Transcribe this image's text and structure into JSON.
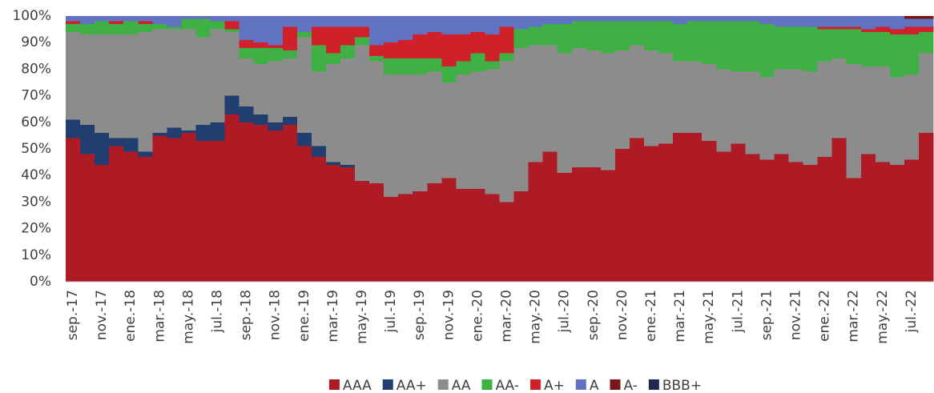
{
  "chart_data": {
    "type": "stacked_area_step",
    "categories": [
      "sep.-17",
      null,
      "nov.-17",
      null,
      "ene.-18",
      null,
      "mar.-18",
      null,
      "may.-18",
      null,
      "jul.-18",
      null,
      "sep.-18",
      null,
      "nov.-18",
      null,
      "ene.-19",
      null,
      "mar.-19",
      null,
      "may.-19",
      null,
      "jul.-19",
      null,
      "sep.-19",
      null,
      "nov.-19",
      null,
      "ene.-20",
      null,
      "mar.-20",
      null,
      "may.-20",
      null,
      "jul.-20",
      null,
      "sep.-20",
      null,
      "nov.-20",
      null,
      "ene.-21",
      null,
      "mar.-21",
      null,
      "may.-21",
      null,
      "jul.-21",
      null,
      "sep.-21",
      null,
      "nov.-21",
      null,
      "ene.-22",
      null,
      "mar.-22",
      null,
      "may.-22",
      null,
      "jul.-22",
      null
    ],
    "series": [
      {
        "name": "AAA",
        "color": "#ae1b24",
        "values": [
          54,
          48,
          44,
          51,
          49,
          47,
          55,
          54,
          56,
          53,
          53,
          63,
          60,
          59,
          57,
          59,
          51,
          47,
          44,
          43,
          38,
          37,
          32,
          33,
          34,
          37,
          39,
          35,
          35,
          33,
          30,
          34,
          45,
          49,
          41,
          43,
          43,
          42,
          50,
          54,
          51,
          52,
          56,
          56,
          53,
          49,
          52,
          48,
          46,
          48,
          45,
          44,
          47,
          54,
          39,
          48,
          45,
          44,
          46,
          56
        ]
      },
      {
        "name": "AA+",
        "color": "#203f70",
        "values": [
          7,
          11,
          12,
          3,
          5,
          2,
          1,
          4,
          1,
          6,
          7,
          7,
          6,
          4,
          3,
          3,
          5,
          4,
          1,
          1,
          0,
          0,
          0,
          0,
          0,
          0,
          0,
          0,
          0,
          0,
          0,
          0,
          0,
          0,
          0,
          0,
          0,
          0,
          0,
          0,
          0,
          0,
          0,
          0,
          0,
          0,
          0,
          0,
          0,
          0,
          0,
          0,
          0,
          0,
          0,
          0,
          0,
          0,
          0,
          0
        ]
      },
      {
        "name": "AA",
        "color": "#8c8c8c",
        "values": [
          33,
          34,
          37,
          39,
          39,
          45,
          39,
          37,
          38,
          33,
          35,
          24,
          18,
          19,
          23,
          22,
          36,
          28,
          37,
          40,
          51,
          46,
          46,
          45,
          44,
          42,
          36,
          43,
          44,
          47,
          53,
          54,
          44,
          40,
          45,
          45,
          44,
          44,
          37,
          35,
          36,
          34,
          27,
          27,
          29,
          31,
          27,
          31,
          31,
          32,
          35,
          35,
          36,
          30,
          43,
          33,
          36,
          33,
          32,
          30
        ]
      },
      {
        "name": "AA-",
        "color": "#3fb044",
        "values": [
          3,
          4,
          5,
          4,
          5,
          3,
          2,
          1,
          4,
          7,
          3,
          1,
          4,
          6,
          5,
          3,
          2,
          10,
          4,
          5,
          3,
          2,
          6,
          6,
          6,
          5,
          6,
          5,
          7,
          3,
          3,
          7,
          7,
          8,
          11,
          10,
          11,
          12,
          11,
          9,
          11,
          12,
          14,
          15,
          16,
          18,
          19,
          19,
          20,
          16,
          16,
          17,
          12,
          11,
          13,
          13,
          13,
          16,
          15,
          8
        ]
      },
      {
        "name": "A+",
        "color": "#d0202a",
        "values": [
          1,
          0,
          0,
          1,
          0,
          1,
          0,
          0,
          0,
          0,
          0,
          3,
          3,
          2,
          1,
          9,
          0,
          7,
          10,
          7,
          4,
          4,
          6,
          7,
          9,
          10,
          12,
          10,
          8,
          10,
          10,
          0,
          0,
          0,
          0,
          0,
          0,
          0,
          0,
          0,
          0,
          0,
          0,
          0,
          0,
          0,
          0,
          0,
          0,
          0,
          0,
          0,
          1,
          1,
          1,
          1,
          2,
          2,
          3,
          2
        ]
      },
      {
        "name": "A",
        "color": "#6272c2",
        "values": [
          2,
          3,
          2,
          2,
          2,
          2,
          3,
          4,
          1,
          1,
          2,
          2,
          9,
          10,
          11,
          4,
          6,
          4,
          4,
          4,
          4,
          11,
          10,
          9,
          7,
          6,
          7,
          7,
          6,
          7,
          4,
          5,
          4,
          3,
          3,
          2,
          2,
          2,
          2,
          2,
          2,
          2,
          3,
          2,
          2,
          2,
          2,
          2,
          3,
          4,
          4,
          4,
          4,
          4,
          4,
          5,
          4,
          5,
          3,
          3
        ]
      },
      {
        "name": "A-",
        "color": "#7a1518",
        "values": [
          0,
          0,
          0,
          0,
          0,
          0,
          0,
          0,
          0,
          0,
          0,
          0,
          0,
          0,
          0,
          0,
          0,
          0,
          0,
          0,
          0,
          0,
          0,
          0,
          0,
          0,
          0,
          0,
          0,
          0,
          0,
          0,
          0,
          0,
          0,
          0,
          0,
          0,
          0,
          0,
          0,
          0,
          0,
          0,
          0,
          0,
          0,
          0,
          0,
          0,
          0,
          0,
          0,
          0,
          0,
          0,
          0,
          0,
          1,
          1
        ]
      },
      {
        "name": "BBB+",
        "color": "#1b2a4e",
        "values": [
          0,
          0,
          0,
          0,
          0,
          0,
          0,
          0,
          0,
          0,
          0,
          0,
          0,
          0,
          0,
          0,
          0,
          0,
          0,
          0,
          0,
          0,
          0,
          0,
          0,
          0,
          0,
          0,
          0,
          0,
          0,
          0,
          0,
          0,
          0,
          0,
          0,
          0,
          0,
          0,
          0,
          0,
          0,
          0,
          0,
          0,
          0,
          0,
          0,
          0,
          0,
          0,
          0,
          0,
          0,
          0,
          0,
          0,
          0,
          0
        ]
      }
    ],
    "ylim": [
      0,
      100
    ],
    "yticks": [
      {
        "value": 0,
        "label": "0%"
      },
      {
        "value": 10,
        "label": "10%"
      },
      {
        "value": 20,
        "label": "20%"
      },
      {
        "value": 30,
        "label": "30%"
      },
      {
        "value": 40,
        "label": "40%"
      },
      {
        "value": 50,
        "label": "50%"
      },
      {
        "value": 60,
        "label": "60%"
      },
      {
        "value": 70,
        "label": "70%"
      },
      {
        "value": 80,
        "label": "80%"
      },
      {
        "value": 90,
        "label": "90%"
      },
      {
        "value": 100,
        "label": "100%"
      }
    ],
    "legend": "bottom"
  }
}
